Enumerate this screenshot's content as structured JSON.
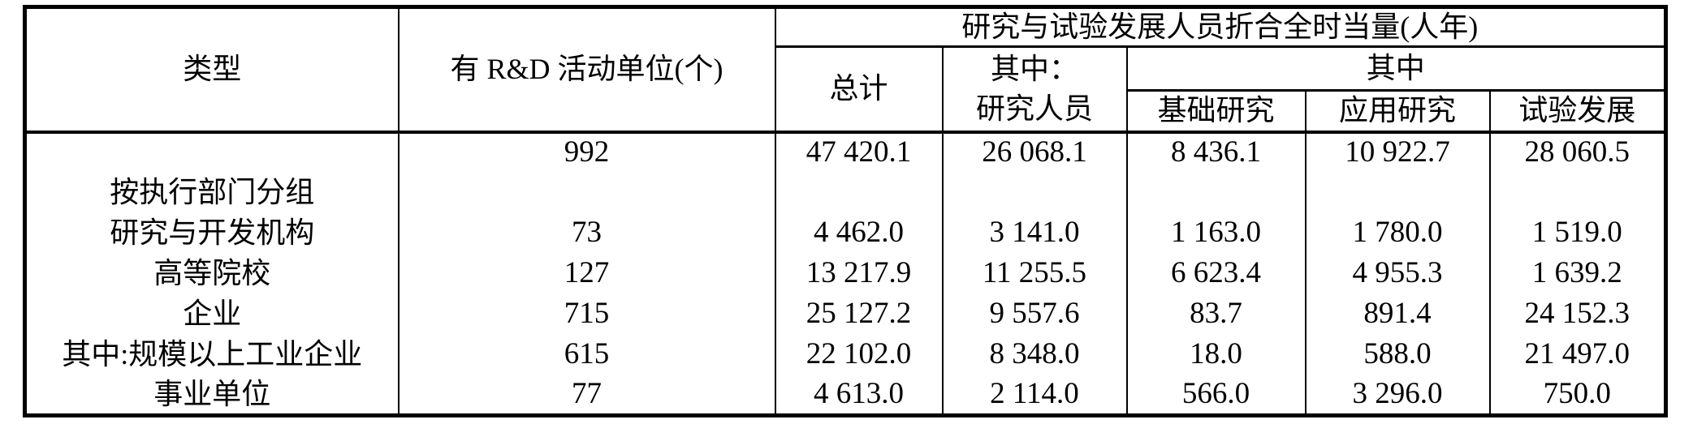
{
  "table": {
    "headers": {
      "type": "类型",
      "rd_units": "有 R&D 活动单位(个)",
      "fte_group": "研究与试验发展人员折合全时当量(人年)",
      "total": "总计",
      "of_which_researchers_line1": "其中：",
      "of_which_researchers_line2": "研究人员",
      "of_which": "其中",
      "basic_research": "基础研究",
      "applied_research": "应用研究",
      "experimental_development": "试验发展"
    },
    "rows": [
      {
        "label": "",
        "cells": [
          "992",
          "47 420.1",
          "26 068.1",
          "8 436.1",
          "10 922.7",
          "28 060.5"
        ]
      },
      {
        "label": "按执行部门分组",
        "cells": [
          "",
          "",
          "",
          "",
          "",
          ""
        ]
      },
      {
        "label": "研究与开发机构",
        "cells": [
          "73",
          "4 462.0",
          "3 141.0",
          "1 163.0",
          "1 780.0",
          "1 519.0"
        ]
      },
      {
        "label": "高等院校",
        "cells": [
          "127",
          "13 217.9",
          "11 255.5",
          "6 623.4",
          "4 955.3",
          "1 639.2"
        ]
      },
      {
        "label": "企业",
        "cells": [
          "715",
          "25 127.2",
          "9 557.6",
          "83.7",
          "891.4",
          "24 152.3"
        ]
      },
      {
        "label": "其中:规模以上工业企业",
        "cells": [
          "615",
          "22 102.0",
          "8 348.0",
          "18.0",
          "588.0",
          "21 497.0"
        ]
      },
      {
        "label": "事业单位",
        "cells": [
          "77",
          "4 613.0",
          "2 114.0",
          "566.0",
          "3 296.0",
          "750.0"
        ]
      }
    ]
  }
}
